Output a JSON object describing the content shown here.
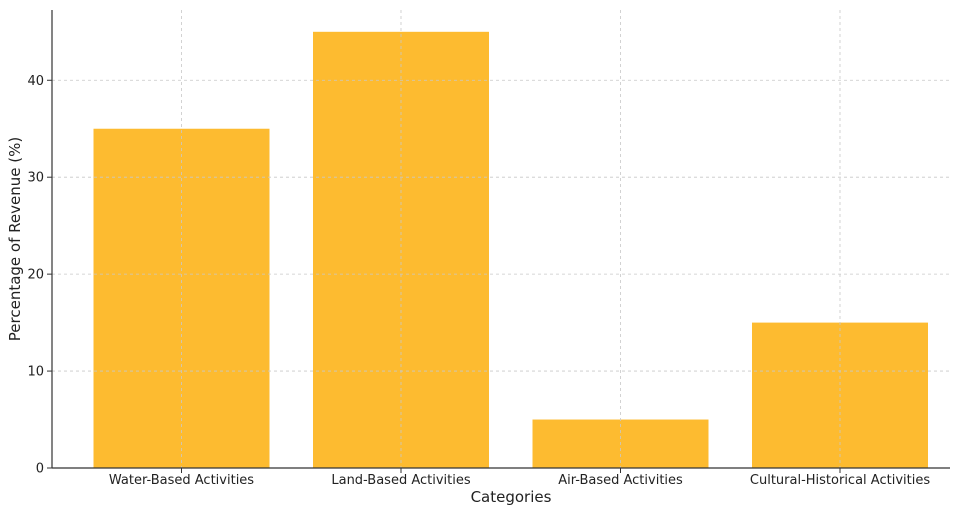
{
  "chart_data": {
    "type": "bar",
    "title": "",
    "xlabel": "Categories",
    "ylabel": "Percentage of Revenue (%)",
    "categories": [
      "Water-Based Activities",
      "Land-Based Activities",
      "Air-Based Activities",
      "Cultural-Historical Activities"
    ],
    "values": [
      35,
      45,
      5,
      15
    ],
    "ylim": [
      0,
      47.25
    ],
    "yticks": [
      0,
      10,
      20,
      30,
      40
    ],
    "grid": true,
    "legend": "none",
    "bar_color": "#FDBB30"
  }
}
